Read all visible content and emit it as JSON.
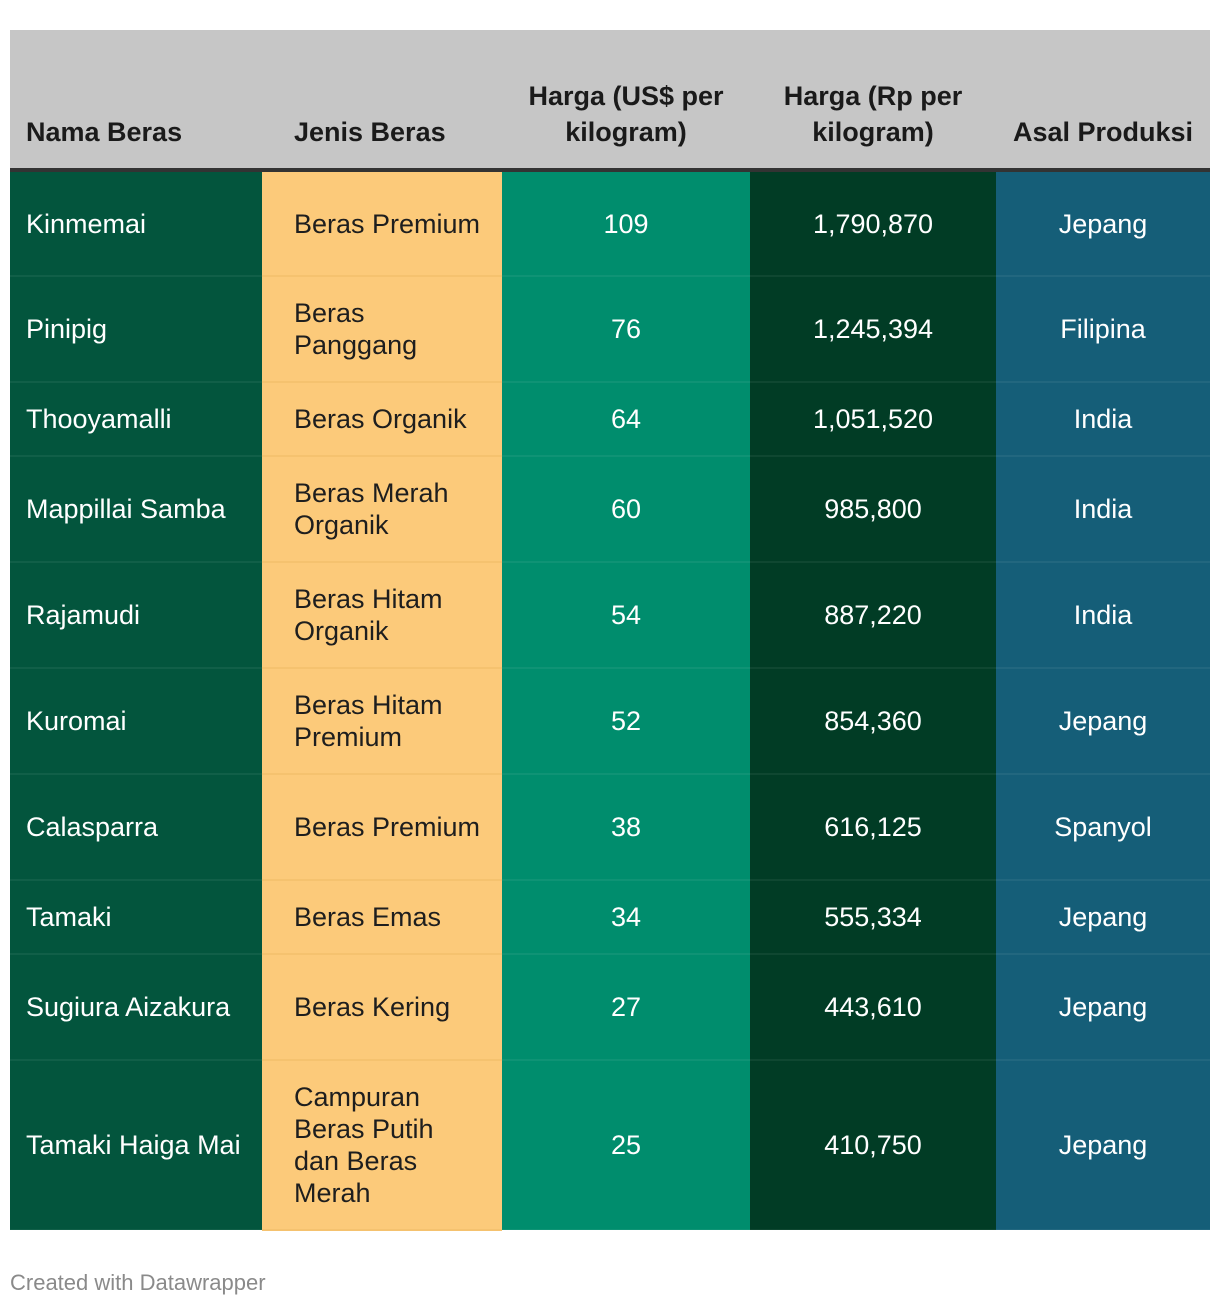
{
  "chart_data": {
    "type": "table",
    "columns": [
      "Nama Beras",
      "Jenis Beras",
      "Harga (US$ per kilogram)",
      "Harga (Rp per kilogram)",
      "Asal Produksi"
    ],
    "rows": [
      [
        "Kinmemai",
        "Beras Premium",
        "109",
        "1,790,870",
        "Jepang"
      ],
      [
        "Pinipig",
        "Beras Panggang",
        "76",
        "1,245,394",
        "Filipina"
      ],
      [
        "Thooyamalli",
        "Beras Organik",
        "64",
        "1,051,520",
        "India"
      ],
      [
        "Mappillai Samba",
        "Beras Merah Organik",
        "60",
        "985,800",
        "India"
      ],
      [
        "Rajamudi",
        "Beras Hitam Organik",
        "54",
        "887,220",
        "India"
      ],
      [
        "Kuromai",
        "Beras Hitam Premium",
        "52",
        "854,360",
        "Jepang"
      ],
      [
        "Calasparra",
        "Beras Premium",
        "38",
        "616,125",
        "Spanyol"
      ],
      [
        "Tamaki",
        "Beras Emas",
        "34",
        "555,334",
        "Jepang"
      ],
      [
        "Sugiura Aizakura",
        "Beras Kering",
        "27",
        "443,610",
        "Jepang"
      ],
      [
        "Tamaki Haiga Mai",
        "Campuran Beras Putih dan Beras Merah",
        "25",
        "410,750",
        "Jepang"
      ]
    ],
    "column_colors": [
      "#03553d",
      "#fcca7a",
      "#008d6d",
      "#013c25",
      "#155e78"
    ],
    "header_color": "#c6c6c6"
  },
  "footer": "Created with Datawrapper"
}
